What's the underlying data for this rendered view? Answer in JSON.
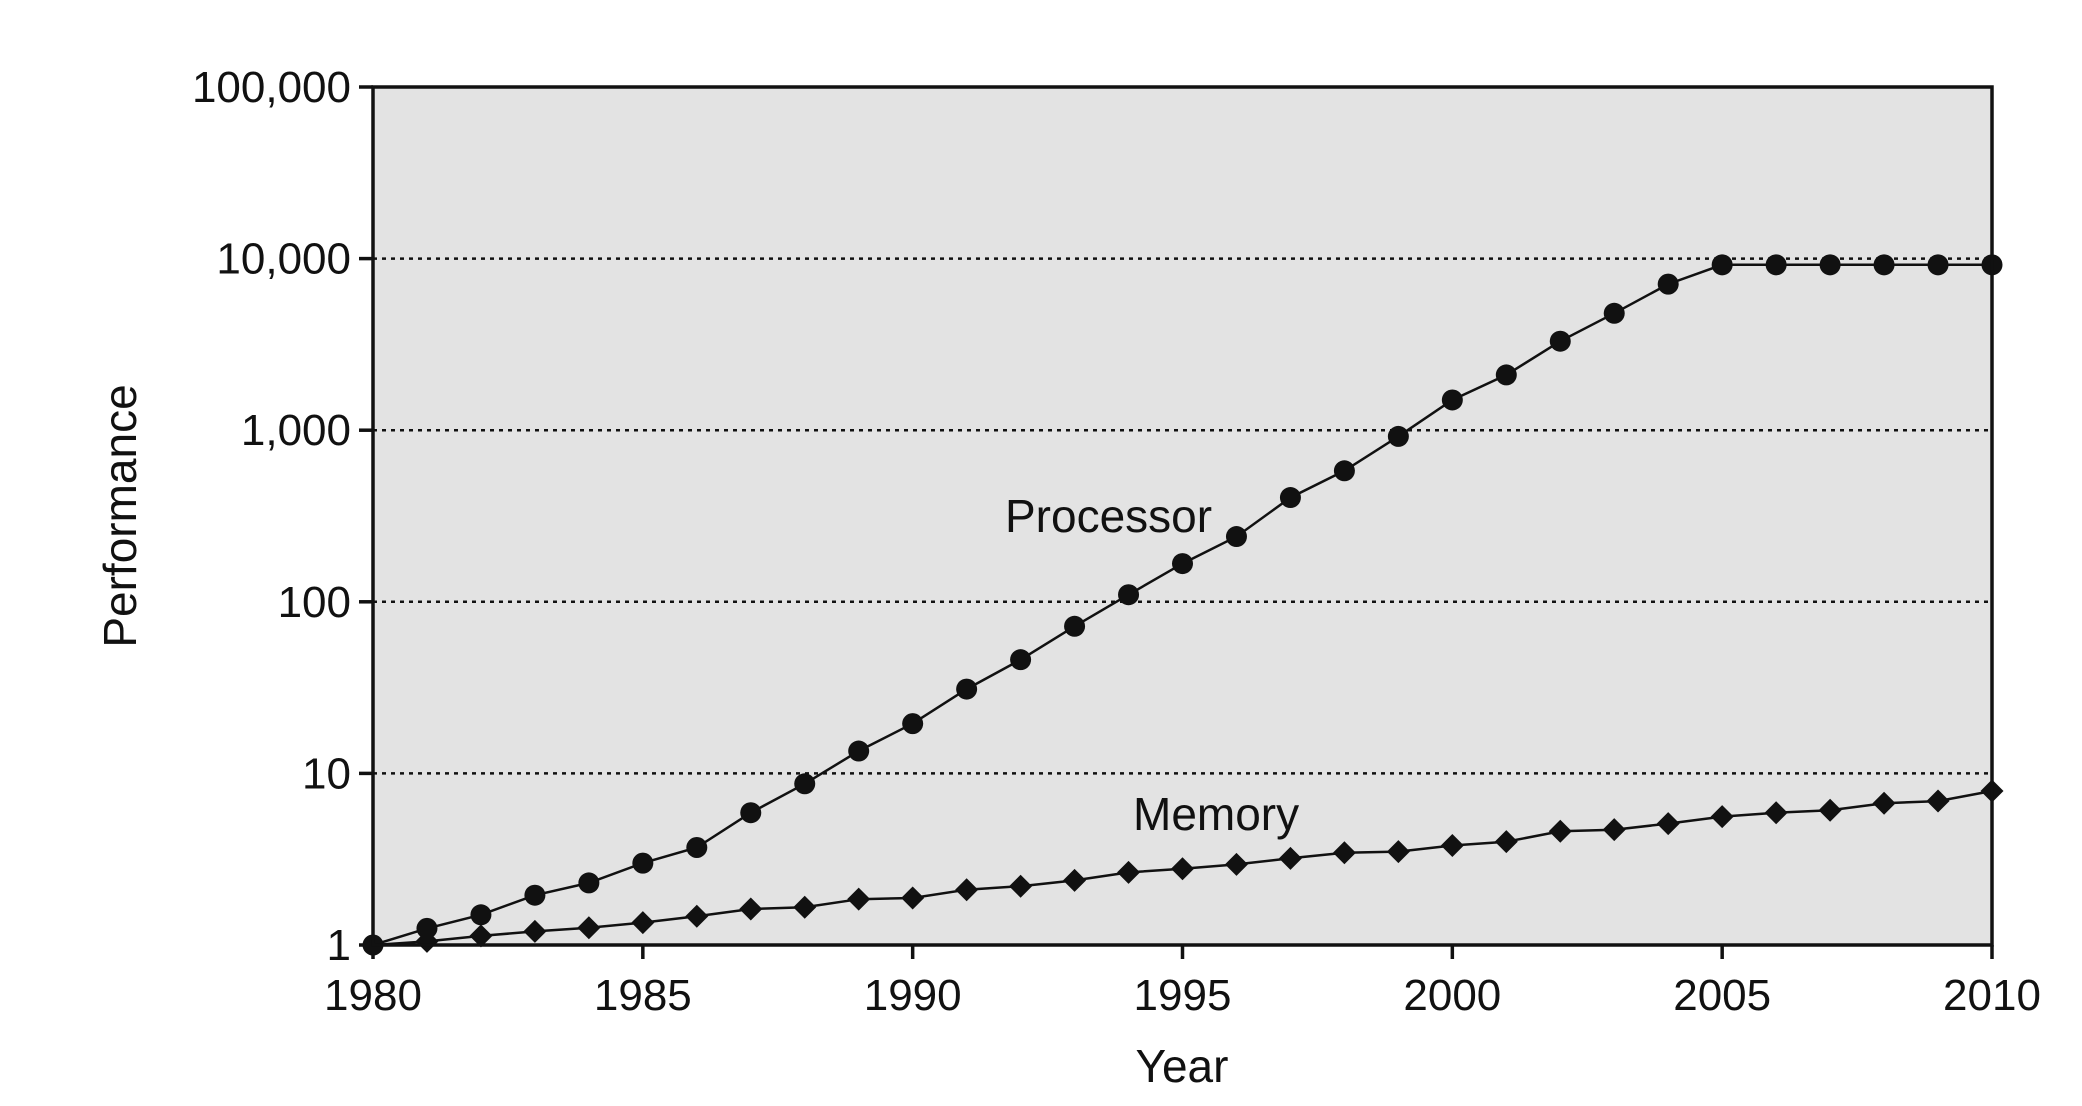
{
  "chart_data": {
    "type": "line",
    "title": "",
    "xlabel": "Year",
    "ylabel": "Performance",
    "x_scale": "linear",
    "y_scale": "log",
    "xlim": [
      1980,
      2010
    ],
    "ylim": [
      1,
      100000
    ],
    "x_ticks": [
      1980,
      1985,
      1990,
      1995,
      2000,
      2005,
      2010
    ],
    "x_tick_labels": [
      "1980",
      "1985",
      "1990",
      "1995",
      "2000",
      "2005",
      "2010"
    ],
    "y_ticks": [
      1,
      10,
      100,
      1000,
      10000,
      100000
    ],
    "y_tick_labels": [
      "1",
      "10",
      "100",
      "1,000",
      "10,000",
      "100,000"
    ],
    "grid": "horizontal dotted lines at y = 10, 100, 1,000, 10,000",
    "legend": "none; series labelled directly on the plot",
    "background_color": "#e3e3e3",
    "line_color": "#111111",
    "x": [
      1980,
      1981,
      1982,
      1983,
      1984,
      1985,
      1986,
      1987,
      1988,
      1989,
      1990,
      1991,
      1992,
      1993,
      1994,
      1995,
      1996,
      1997,
      1998,
      1999,
      2000,
      2001,
      2002,
      2003,
      2004,
      2005,
      2006,
      2007,
      2008,
      2009,
      2010
    ],
    "series": [
      {
        "name": "Processor",
        "marker": "circle",
        "values": [
          1,
          1.25,
          1.5,
          1.95,
          2.3,
          3.0,
          3.7,
          5.9,
          8.7,
          13.5,
          19.5,
          31,
          46,
          72,
          110,
          167,
          240,
          405,
          580,
          920,
          1500,
          2100,
          3300,
          4800,
          7100,
          9200,
          9200,
          9200,
          9200,
          9200,
          9200
        ]
      },
      {
        "name": "Memory",
        "marker": "diamond",
        "values": [
          1,
          1.05,
          1.13,
          1.2,
          1.26,
          1.35,
          1.47,
          1.62,
          1.66,
          1.85,
          1.88,
          2.1,
          2.2,
          2.38,
          2.65,
          2.78,
          2.95,
          3.2,
          3.45,
          3.5,
          3.8,
          4.0,
          4.6,
          4.7,
          5.1,
          5.6,
          5.9,
          6.1,
          6.7,
          6.9,
          7.9
        ]
      }
    ]
  }
}
